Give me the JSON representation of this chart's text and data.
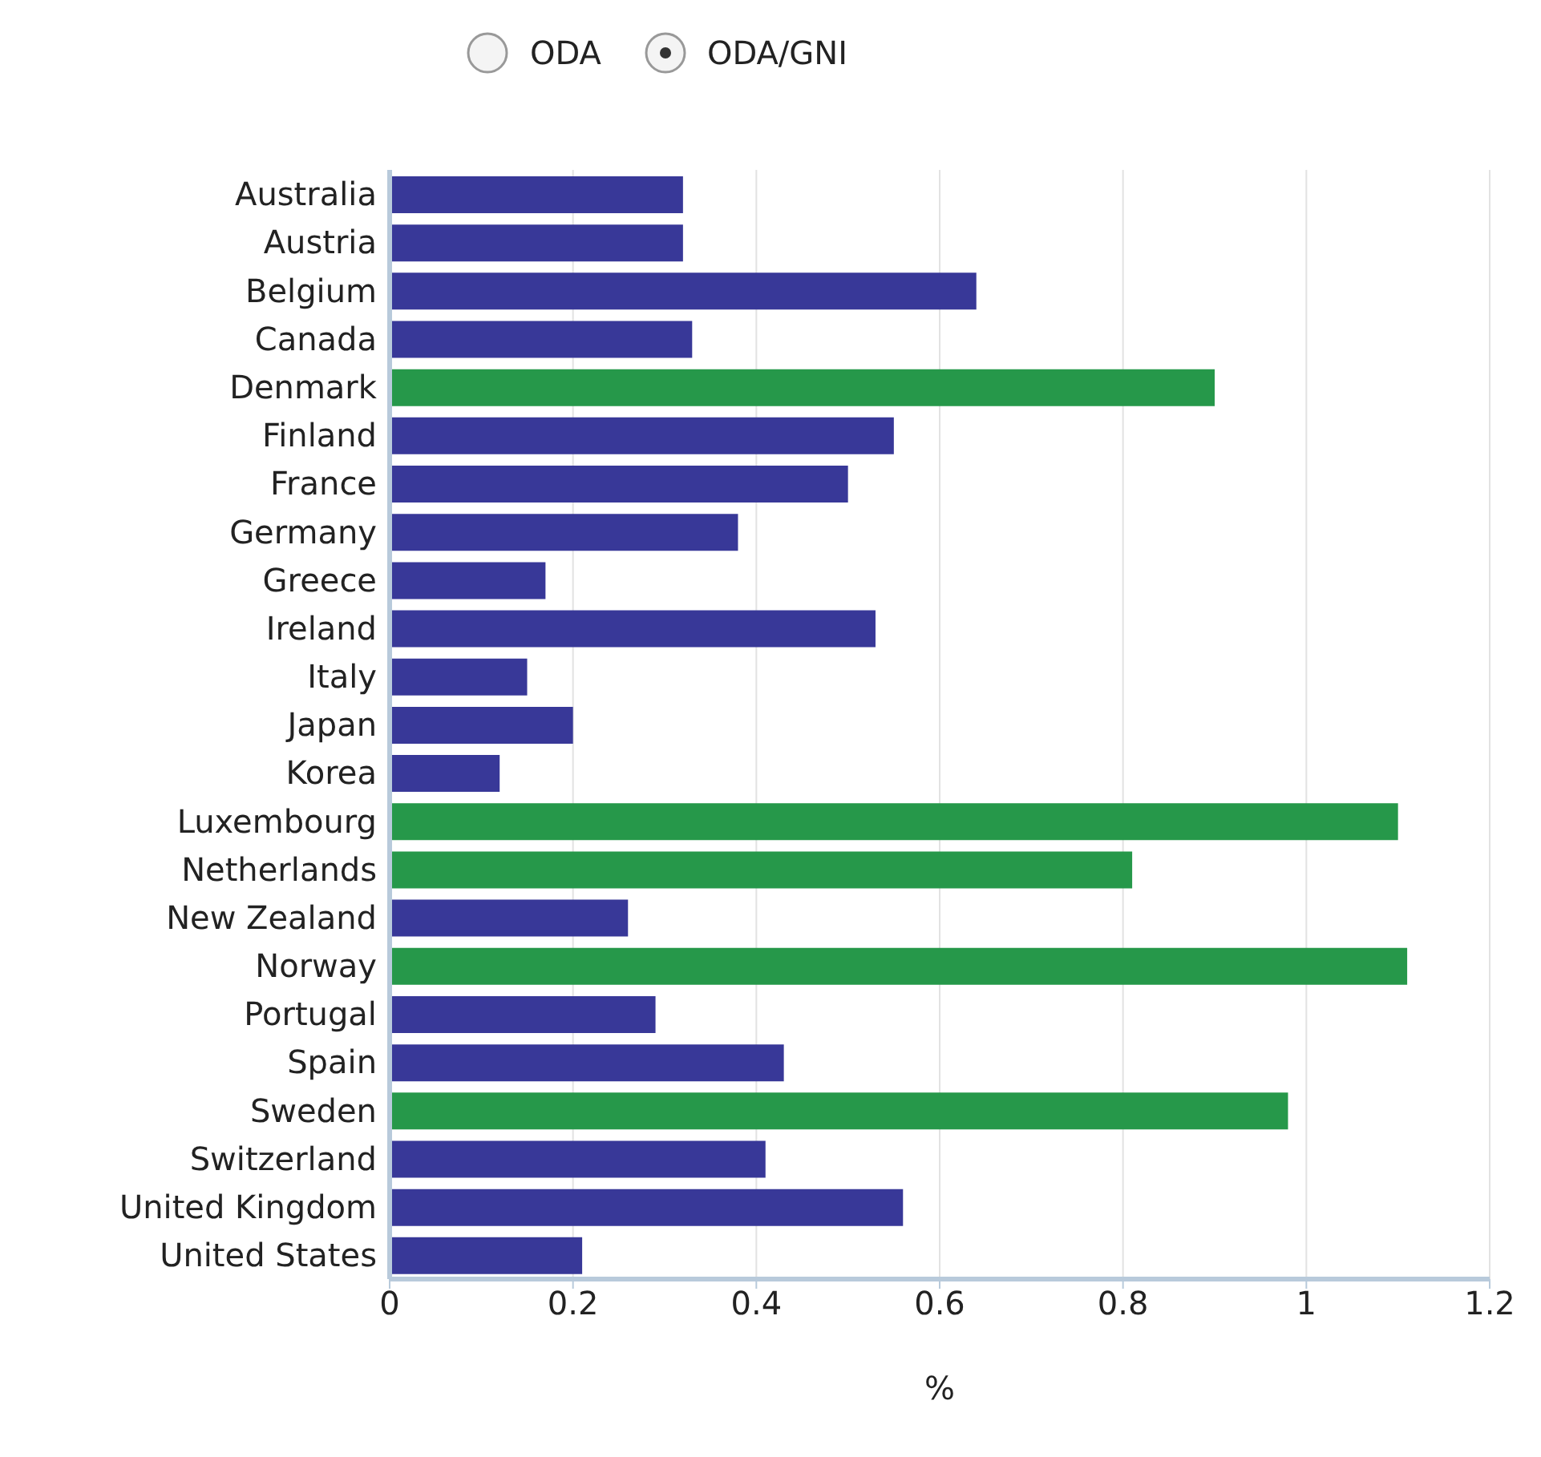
{
  "chart_data": {
    "type": "bar",
    "orientation": "horizontal",
    "xlabel": "%",
    "annotations": [
      "ODA",
      "ODA/GNI"
    ],
    "categories": [
      "Australia",
      "Austria",
      "Belgium",
      "Canada",
      "Denmark",
      "Finland",
      "France",
      "Germany",
      "Greece",
      "Ireland",
      "Italy",
      "Japan",
      "Korea",
      "Luxembourg",
      "Netherlands",
      "New Zealand",
      "Norway",
      "Portugal",
      "Spain",
      "Sweden",
      "Switzerland",
      "United Kingdom",
      "United States"
    ],
    "values": [
      0.32,
      0.32,
      0.64,
      0.33,
      0.9,
      0.55,
      0.5,
      0.38,
      0.17,
      0.53,
      0.15,
      0.2,
      0.12,
      1.1,
      0.81,
      0.26,
      1.11,
      0.29,
      0.43,
      0.98,
      0.41,
      0.56,
      0.21
    ],
    "colors": [
      "#383898",
      "#383898",
      "#383898",
      "#383898",
      "#26984a",
      "#383898",
      "#383898",
      "#383898",
      "#383898",
      "#383898",
      "#383898",
      "#383898",
      "#383898",
      "#26984a",
      "#26984a",
      "#383898",
      "#26984a",
      "#383898",
      "#383898",
      "#26984a",
      "#383898",
      "#383898",
      "#383898"
    ],
    "xlim": [
      0,
      1.2
    ],
    "xticks": [
      0,
      0.2,
      0.4,
      0.6,
      0.8,
      1,
      1.2
    ],
    "grid": "x",
    "legend": false
  }
}
